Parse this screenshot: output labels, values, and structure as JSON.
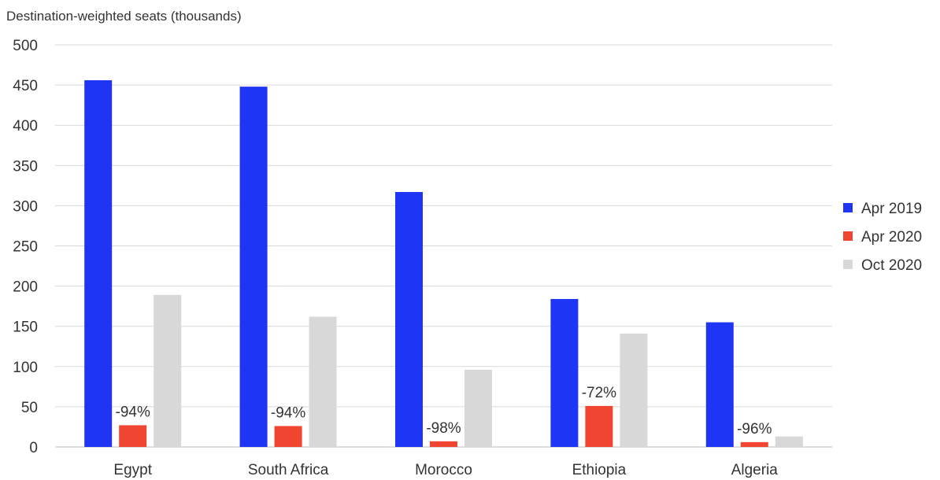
{
  "chart_data": {
    "type": "bar",
    "ylabel": "Destination-weighted seats (thousands)",
    "ylim": [
      0,
      500
    ],
    "yticks": [
      0,
      50,
      100,
      150,
      200,
      250,
      300,
      350,
      400,
      450,
      500
    ],
    "grid": true,
    "legend_position": "right",
    "categories": [
      "Egypt",
      "South Africa",
      "Morocco",
      "Ethiopia",
      "Algeria"
    ],
    "series": [
      {
        "name": "Apr 2019",
        "color": "#1f35f5",
        "values": [
          456,
          448,
          317,
          184,
          155
        ]
      },
      {
        "name": "Apr 2020",
        "color": "#f04530",
        "values": [
          27,
          26,
          7,
          51,
          6
        ]
      },
      {
        "name": "Oct 2020",
        "color": "#d8d8d8",
        "values": [
          189,
          162,
          96,
          141,
          13
        ]
      }
    ],
    "data_labels": [
      "-94%",
      "-94%",
      "-98%",
      "-72%",
      "-96%"
    ]
  }
}
